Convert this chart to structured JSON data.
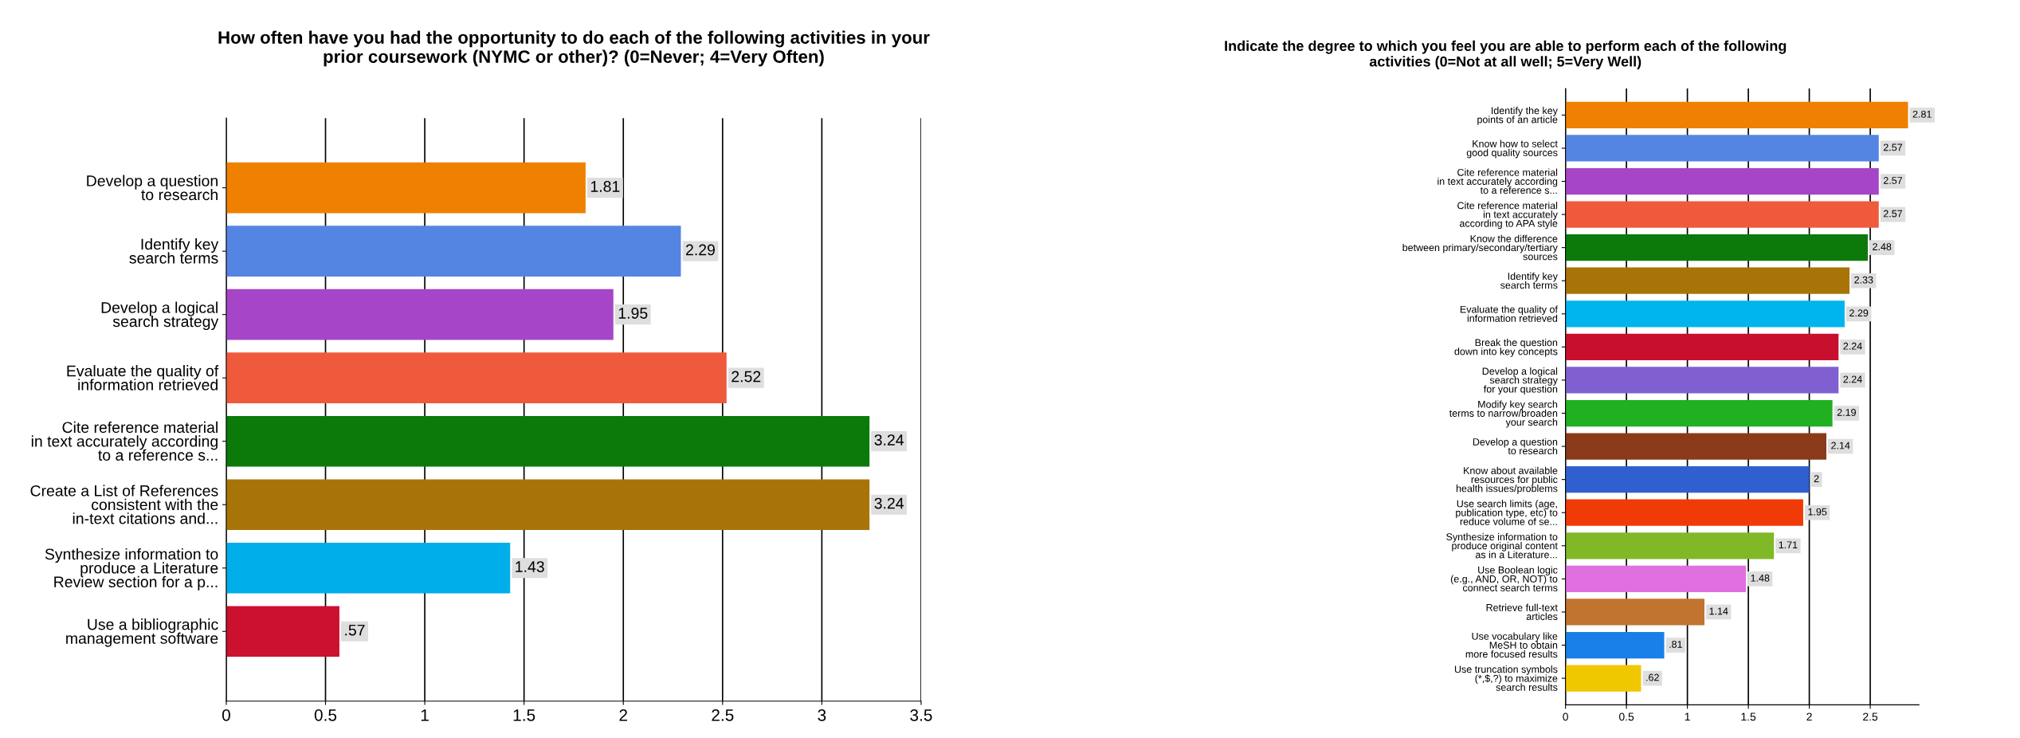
{
  "chart_data": [
    {
      "type": "bar",
      "orientation": "horizontal",
      "title": "How often have you had the opportunity to do each of the following activities in your\nprior coursework (NYMC or other)? (0=Never; 4=Very Often)",
      "categories": [
        "Develop a question\nto research",
        "Identify key\nsearch terms",
        "Develop a logical\nsearch strategy",
        "Evaluate the quality of\ninformation retrieved",
        "Cite reference material\nin text accurately according\nto a reference s...",
        "Create a List of References\nconsistent with the\nin-text citations and...",
        "Synthesize information to\nproduce a Literature\nReview section for a p...",
        "Use a bibliographic\nmanagement software"
      ],
      "values": [
        1.81,
        2.29,
        1.95,
        2.52,
        3.24,
        3.24,
        1.43,
        0.57
      ],
      "value_labels": [
        "1.81",
        "2.29",
        "1.95",
        "2.52",
        "3.24",
        "3.24",
        "1.43",
        ".57"
      ],
      "colors": [
        "#f08000",
        "#5585e2",
        "#a645c8",
        "#f05a3c",
        "#0b7a0b",
        "#a87408",
        "#00aeea",
        "#cc1030"
      ],
      "xlim": [
        0,
        3.5
      ],
      "xticks": [
        0,
        0.5,
        1,
        1.5,
        2,
        2.5,
        3,
        3.5
      ],
      "grid": "x"
    },
    {
      "type": "bar",
      "orientation": "horizontal",
      "title": "Indicate the degree to which you feel you are able to perform each of the following\nactivities (0=Not at all well; 5=Very Well)",
      "categories": [
        "Identify the key\npoints of an article",
        "Know how to select\ngood quality sources",
        "Cite reference material\nin text accurately according\nto a reference s...",
        "Cite reference material\nin text accurately\naccording to APA style",
        "Know the difference\nbetween primary/secondary/tertiary\nsources",
        "Identify key\nsearch terms",
        "Evaluate the quality of\ninformation retrieved",
        "Break the question\ndown into key concepts",
        "Develop a logical\nsearch strategy\nfor your question",
        "Modify key search\nterms to narrow/broaden\nyour search",
        "Develop a question\nto research",
        "Know about available\nresources for public\nhealth issues/problems",
        "Use search limits (age,\npublication type, etc) to\nreduce volume of se...",
        "Synthesize information to\nproduce original content\nas in a Literature...",
        "Use Boolean logic\n(e.g., AND, OR, NOT) to\nconnect search terms",
        "Retrieve full-text\narticles",
        "Use vocabulary like\nMeSH to obtain\nmore focused results",
        "Use truncation symbols\n(*,$,?) to maximize\nsearch results"
      ],
      "values": [
        2.81,
        2.57,
        2.57,
        2.57,
        2.48,
        2.33,
        2.29,
        2.24,
        2.24,
        2.19,
        2.14,
        2,
        1.95,
        1.71,
        1.48,
        1.14,
        0.81,
        0.62
      ],
      "value_labels": [
        "2.81",
        "2.57",
        "2.57",
        "2.57",
        "2.48",
        "2.33",
        "2.29",
        "2.24",
        "2.24",
        "2.19",
        "2.14",
        "2",
        "1.95",
        "1.71",
        "1.48",
        "1.14",
        ".81",
        ".62"
      ],
      "colors": [
        "#f08000",
        "#5585e2",
        "#a645c8",
        "#f05a3c",
        "#0b7a0b",
        "#a87408",
        "#00b4ee",
        "#c8102e",
        "#8060d0",
        "#20b020",
        "#8a3a1a",
        "#3060d0",
        "#f03a08",
        "#80b828",
        "#e070e0",
        "#c07430",
        "#1880e8",
        "#f0c800"
      ],
      "xlim": [
        0,
        2.9
      ],
      "xticks": [
        0,
        0.5,
        1,
        1.5,
        2,
        2.5
      ],
      "grid": "x"
    }
  ]
}
